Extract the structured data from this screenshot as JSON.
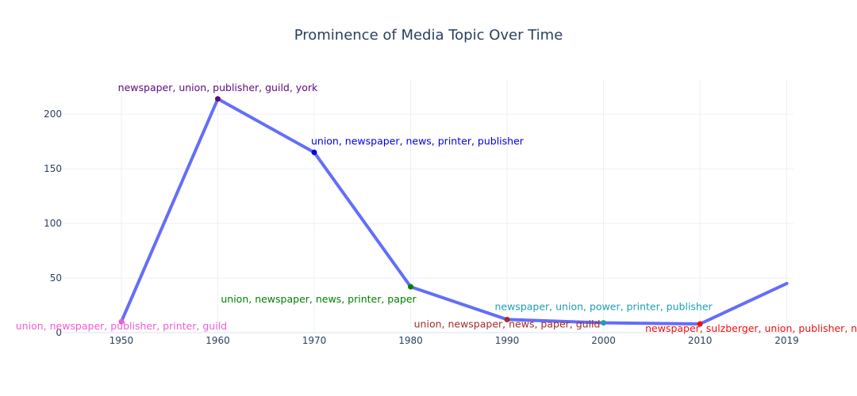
{
  "chart_data": {
    "type": "line",
    "title": "Prominence of Media Topic Over Time",
    "xlabel": "",
    "ylabel": "",
    "x": [
      1950,
      1960,
      1970,
      1980,
      1990,
      2000,
      2010,
      2019
    ],
    "x_ticks": [
      "1950",
      "1960",
      "1970",
      "1980",
      "1990",
      "2000",
      "2010",
      "2019"
    ],
    "x_range": [
      1944,
      2019.7
    ],
    "y_range": [
      0,
      232
    ],
    "y_ticks": [
      0,
      50,
      100,
      150,
      200
    ],
    "grid": true,
    "line_color": "#636efa",
    "series": [
      {
        "values": [
          10,
          214,
          165,
          42,
          12,
          9,
          8,
          45
        ]
      }
    ],
    "annotations": [
      {
        "x": 1950,
        "y": 10,
        "text": "union, newspaper, publisher, printer, guild",
        "color": "#f05dd4",
        "position": "bottom"
      },
      {
        "x": 1960,
        "y": 214,
        "text": "newspaper, union, publisher, guild, york",
        "color": "#5b0a7f",
        "position": "top"
      },
      {
        "x": 1970,
        "y": 165,
        "text": "union, newspaper, news, printer, publisher",
        "color": "#0000e0",
        "position": "top-right"
      },
      {
        "x": 1980,
        "y": 42,
        "text": "union, newspaper, news, printer, paper",
        "color": "#008000",
        "position": "bottom-left"
      },
      {
        "x": 1990,
        "y": 12,
        "text": "union, newspaper, news, paper, guild",
        "color": "#a52a2a",
        "position": "bottom"
      },
      {
        "x": 2000,
        "y": 9,
        "text": "newspaper, union, power, printer, publisher",
        "color": "#1e9eb5",
        "position": "top"
      },
      {
        "x": 2010,
        "y": 8,
        "text": "newspaper, sulzberger, union, publisher, news",
        "color": "#ee1111",
        "position": "bottom-right"
      }
    ]
  }
}
